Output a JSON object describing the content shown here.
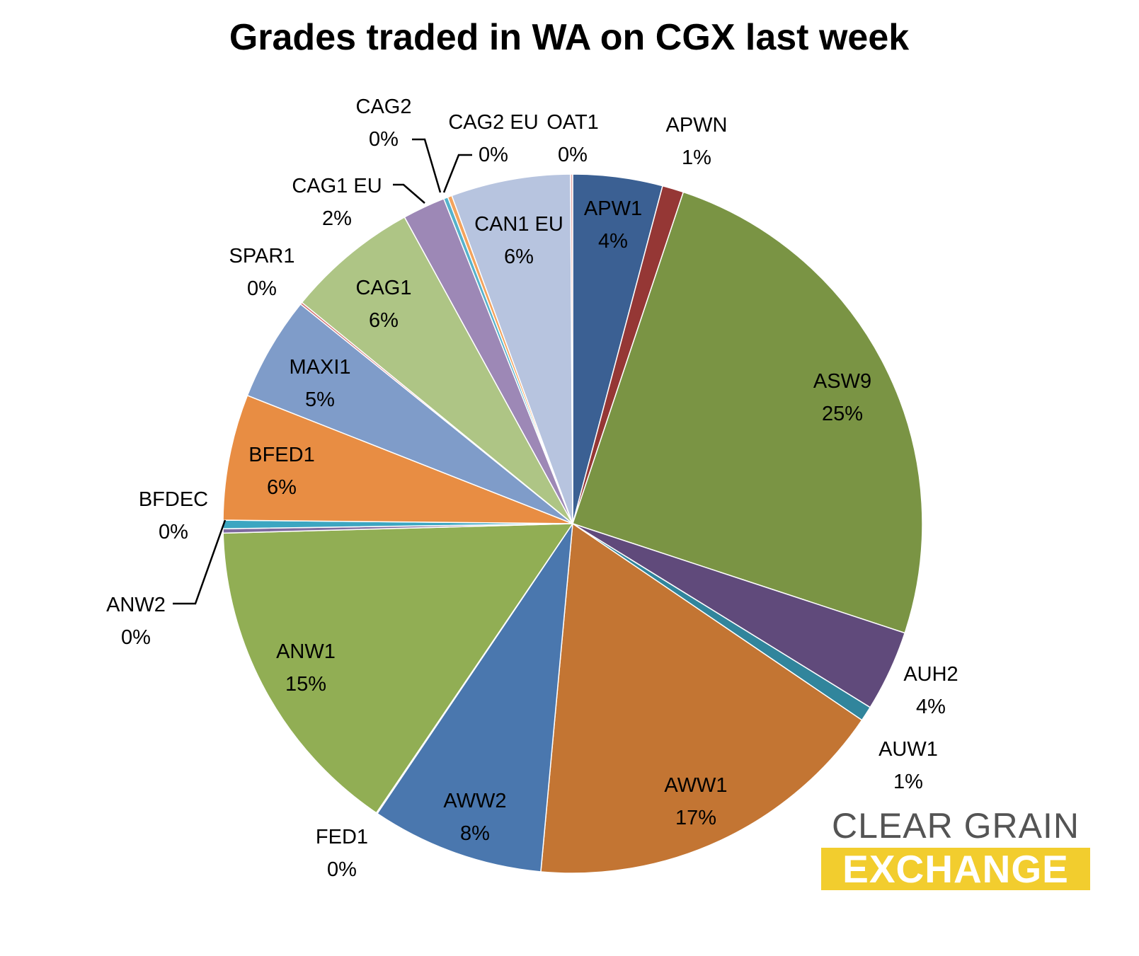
{
  "chart_data": {
    "type": "pie",
    "title": "Grades traded in WA on CGX last week",
    "slices": [
      {
        "name": "APW1",
        "percent_label": "4%",
        "value": 4.2,
        "color": "#3b6093"
      },
      {
        "name": "APWN",
        "percent_label": "1%",
        "value": 1.0,
        "color": "#953735"
      },
      {
        "name": "ASW9",
        "percent_label": "25%",
        "value": 25.3,
        "color": "#7a9444"
      },
      {
        "name": "AUH2",
        "percent_label": "4%",
        "value": 3.8,
        "color": "#604a7b"
      },
      {
        "name": "AUW1",
        "percent_label": "1%",
        "value": 0.7,
        "color": "#31859c"
      },
      {
        "name": "AWW1",
        "percent_label": "17%",
        "value": 17.2,
        "color": "#c37533"
      },
      {
        "name": "AWW2",
        "percent_label": "8%",
        "value": 8.1,
        "color": "#4a77ae"
      },
      {
        "name": "FED1",
        "percent_label": "0%",
        "value": 0.05,
        "color": "#b9514f"
      },
      {
        "name": "ANW1",
        "percent_label": "15%",
        "value": 15.3,
        "color": "#91ae54"
      },
      {
        "name": "ANW2",
        "percent_label": "0%",
        "value": 0.2,
        "color": "#7e6a9e"
      },
      {
        "name": "BFDEC",
        "percent_label": "0%",
        "value": 0.4,
        "color": "#3ca6c1"
      },
      {
        "name": "BFED1",
        "percent_label": "6%",
        "value": 5.9,
        "color": "#e88d43"
      },
      {
        "name": "MAXI1",
        "percent_label": "5%",
        "value": 4.9,
        "color": "#7f9cc9"
      },
      {
        "name": "SPAR1",
        "percent_label": "0%",
        "value": 0.1,
        "color": "#d26d6b"
      },
      {
        "name": "CAG1",
        "percent_label": "6%",
        "value": 6.2,
        "color": "#aec585"
      },
      {
        "name": "CAG1 EU",
        "percent_label": "2%",
        "value": 2.0,
        "color": "#9d88b6"
      },
      {
        "name": "CAG2",
        "percent_label": "0%",
        "value": 0.2,
        "color": "#56b2cb"
      },
      {
        "name": "CAG2 EU",
        "percent_label": "0%",
        "value": 0.2,
        "color": "#f3a35d"
      },
      {
        "name": "CAN1 EU",
        "percent_label": "6%",
        "value": 5.6,
        "color": "#b7c4df"
      },
      {
        "name": "OAT1",
        "percent_label": "0%",
        "value": 0.1,
        "color": "#e3a9a8"
      }
    ]
  },
  "logo": {
    "line1": "CLEAR GRAIN",
    "line2": "EXCHANGE"
  }
}
